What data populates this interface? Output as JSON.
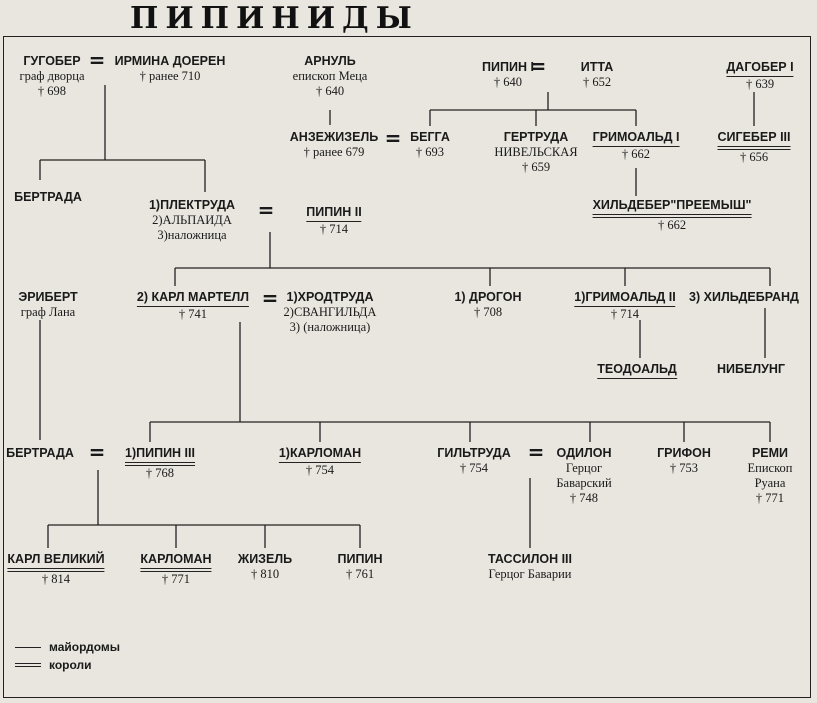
{
  "title": "ПИПИНИДЫ",
  "people": {
    "gugober": {
      "name": "ГУГОБЕР",
      "lines": [
        "граф дворца",
        "† 698"
      ]
    },
    "irmina": {
      "name": "ИРМИНА ДОЕРЕН",
      "lines": [
        "† ранее 710"
      ]
    },
    "arnul": {
      "name": "АРНУЛЬ",
      "lines": [
        "епископ Меца",
        "† 640"
      ]
    },
    "pipin1": {
      "name": "ПИПИН I",
      "lines": [
        "† 640"
      ]
    },
    "itta": {
      "name": "ИТТА",
      "lines": [
        "† 652"
      ]
    },
    "dagober1": {
      "name": "ДАГОБЕР I",
      "lines": [
        "† 639"
      ]
    },
    "anzezizel": {
      "name": "АНЗЕЖИЗЕЛЬ",
      "lines": [
        "† ранее 679"
      ]
    },
    "begga": {
      "name": "БЕГГА",
      "lines": [
        "† 693"
      ]
    },
    "gertruda": {
      "name": "ГЕРТРУДА",
      "lines": [
        "НИВЕЛЬСКАЯ",
        "† 659"
      ]
    },
    "grimoald1": {
      "name": "ГРИМОАЛЬД I",
      "lines": [
        "† 662"
      ]
    },
    "sigeber3": {
      "name": "СИГЕБЕР III",
      "lines": [
        "† 656"
      ]
    },
    "childeber": {
      "name": "ХИЛЬДЕБЕР\"ПРЕЕМЫШ\"",
      "lines": [
        "† 662"
      ]
    },
    "bertrada1": {
      "name": "БЕРТРАДА",
      "lines": []
    },
    "plektruda": {
      "name": "1)ПЛЕКТРУДА",
      "lines": [
        "2)АЛЬПАИДА",
        "3)наложница"
      ]
    },
    "pipin2": {
      "name": "ПИПИН II",
      "lines": [
        "† 714"
      ]
    },
    "eribert": {
      "name": "ЭРИБЕРТ",
      "lines": [
        "граф Лана"
      ]
    },
    "karlmartell": {
      "name": "2) КАРЛ МАРТЕЛЛ",
      "lines": [
        "† 741"
      ]
    },
    "hrodtruda": {
      "name": "1)ХРОДТРУДА",
      "lines": [
        "2)СВАНГИЛЬДА",
        "3) (наложница)"
      ]
    },
    "drogon": {
      "name": "1) ДРОГОН",
      "lines": [
        "† 708"
      ]
    },
    "grimoald2": {
      "name": "1)ГРИМОАЛЬД II",
      "lines": [
        "† 714"
      ]
    },
    "childebrand": {
      "name": "3) ХИЛЬДЕБРАНД",
      "lines": []
    },
    "teodoald": {
      "name": "ТЕОДОАЛЬД",
      "lines": []
    },
    "nibelung": {
      "name": "НИБЕЛУНГ",
      "lines": []
    },
    "bertrada2": {
      "name": "БЕРТРАДА",
      "lines": []
    },
    "pipin3": {
      "name": "1)ПИПИН III",
      "lines": [
        "† 768"
      ]
    },
    "karloman1": {
      "name": "1)КАРЛОМАН",
      "lines": [
        "† 754"
      ]
    },
    "giltruda": {
      "name": "ГИЛЬТРУДА",
      "lines": [
        "† 754"
      ]
    },
    "odilon": {
      "name": "ОДИЛОН",
      "lines": [
        "Герцог",
        "Баварский",
        "† 748"
      ]
    },
    "grifon": {
      "name": "ГРИФОН",
      "lines": [
        "† 753"
      ]
    },
    "remi": {
      "name": "РЕМИ",
      "lines": [
        "Епископ",
        "Руана",
        "† 771"
      ]
    },
    "karl": {
      "name": "КАРЛ ВЕЛИКИЙ",
      "lines": [
        "† 814"
      ]
    },
    "karloman2": {
      "name": "КАРЛОМАН",
      "lines": [
        "† 771"
      ]
    },
    "zhizel": {
      "name": "ЖИЗЕЛЬ",
      "lines": [
        "† 810"
      ]
    },
    "pipin4": {
      "name": "ПИПИН",
      "lines": [
        "† 761"
      ]
    },
    "tassilon": {
      "name": "ТАССИЛОН III",
      "lines": [
        "Герцог Баварии"
      ]
    }
  },
  "marriage_symbol": "=",
  "legend": {
    "mayordomos": "майордомы",
    "kings": "короли"
  },
  "colors": {
    "background": "#e9e6df",
    "ink": "#222222"
  }
}
